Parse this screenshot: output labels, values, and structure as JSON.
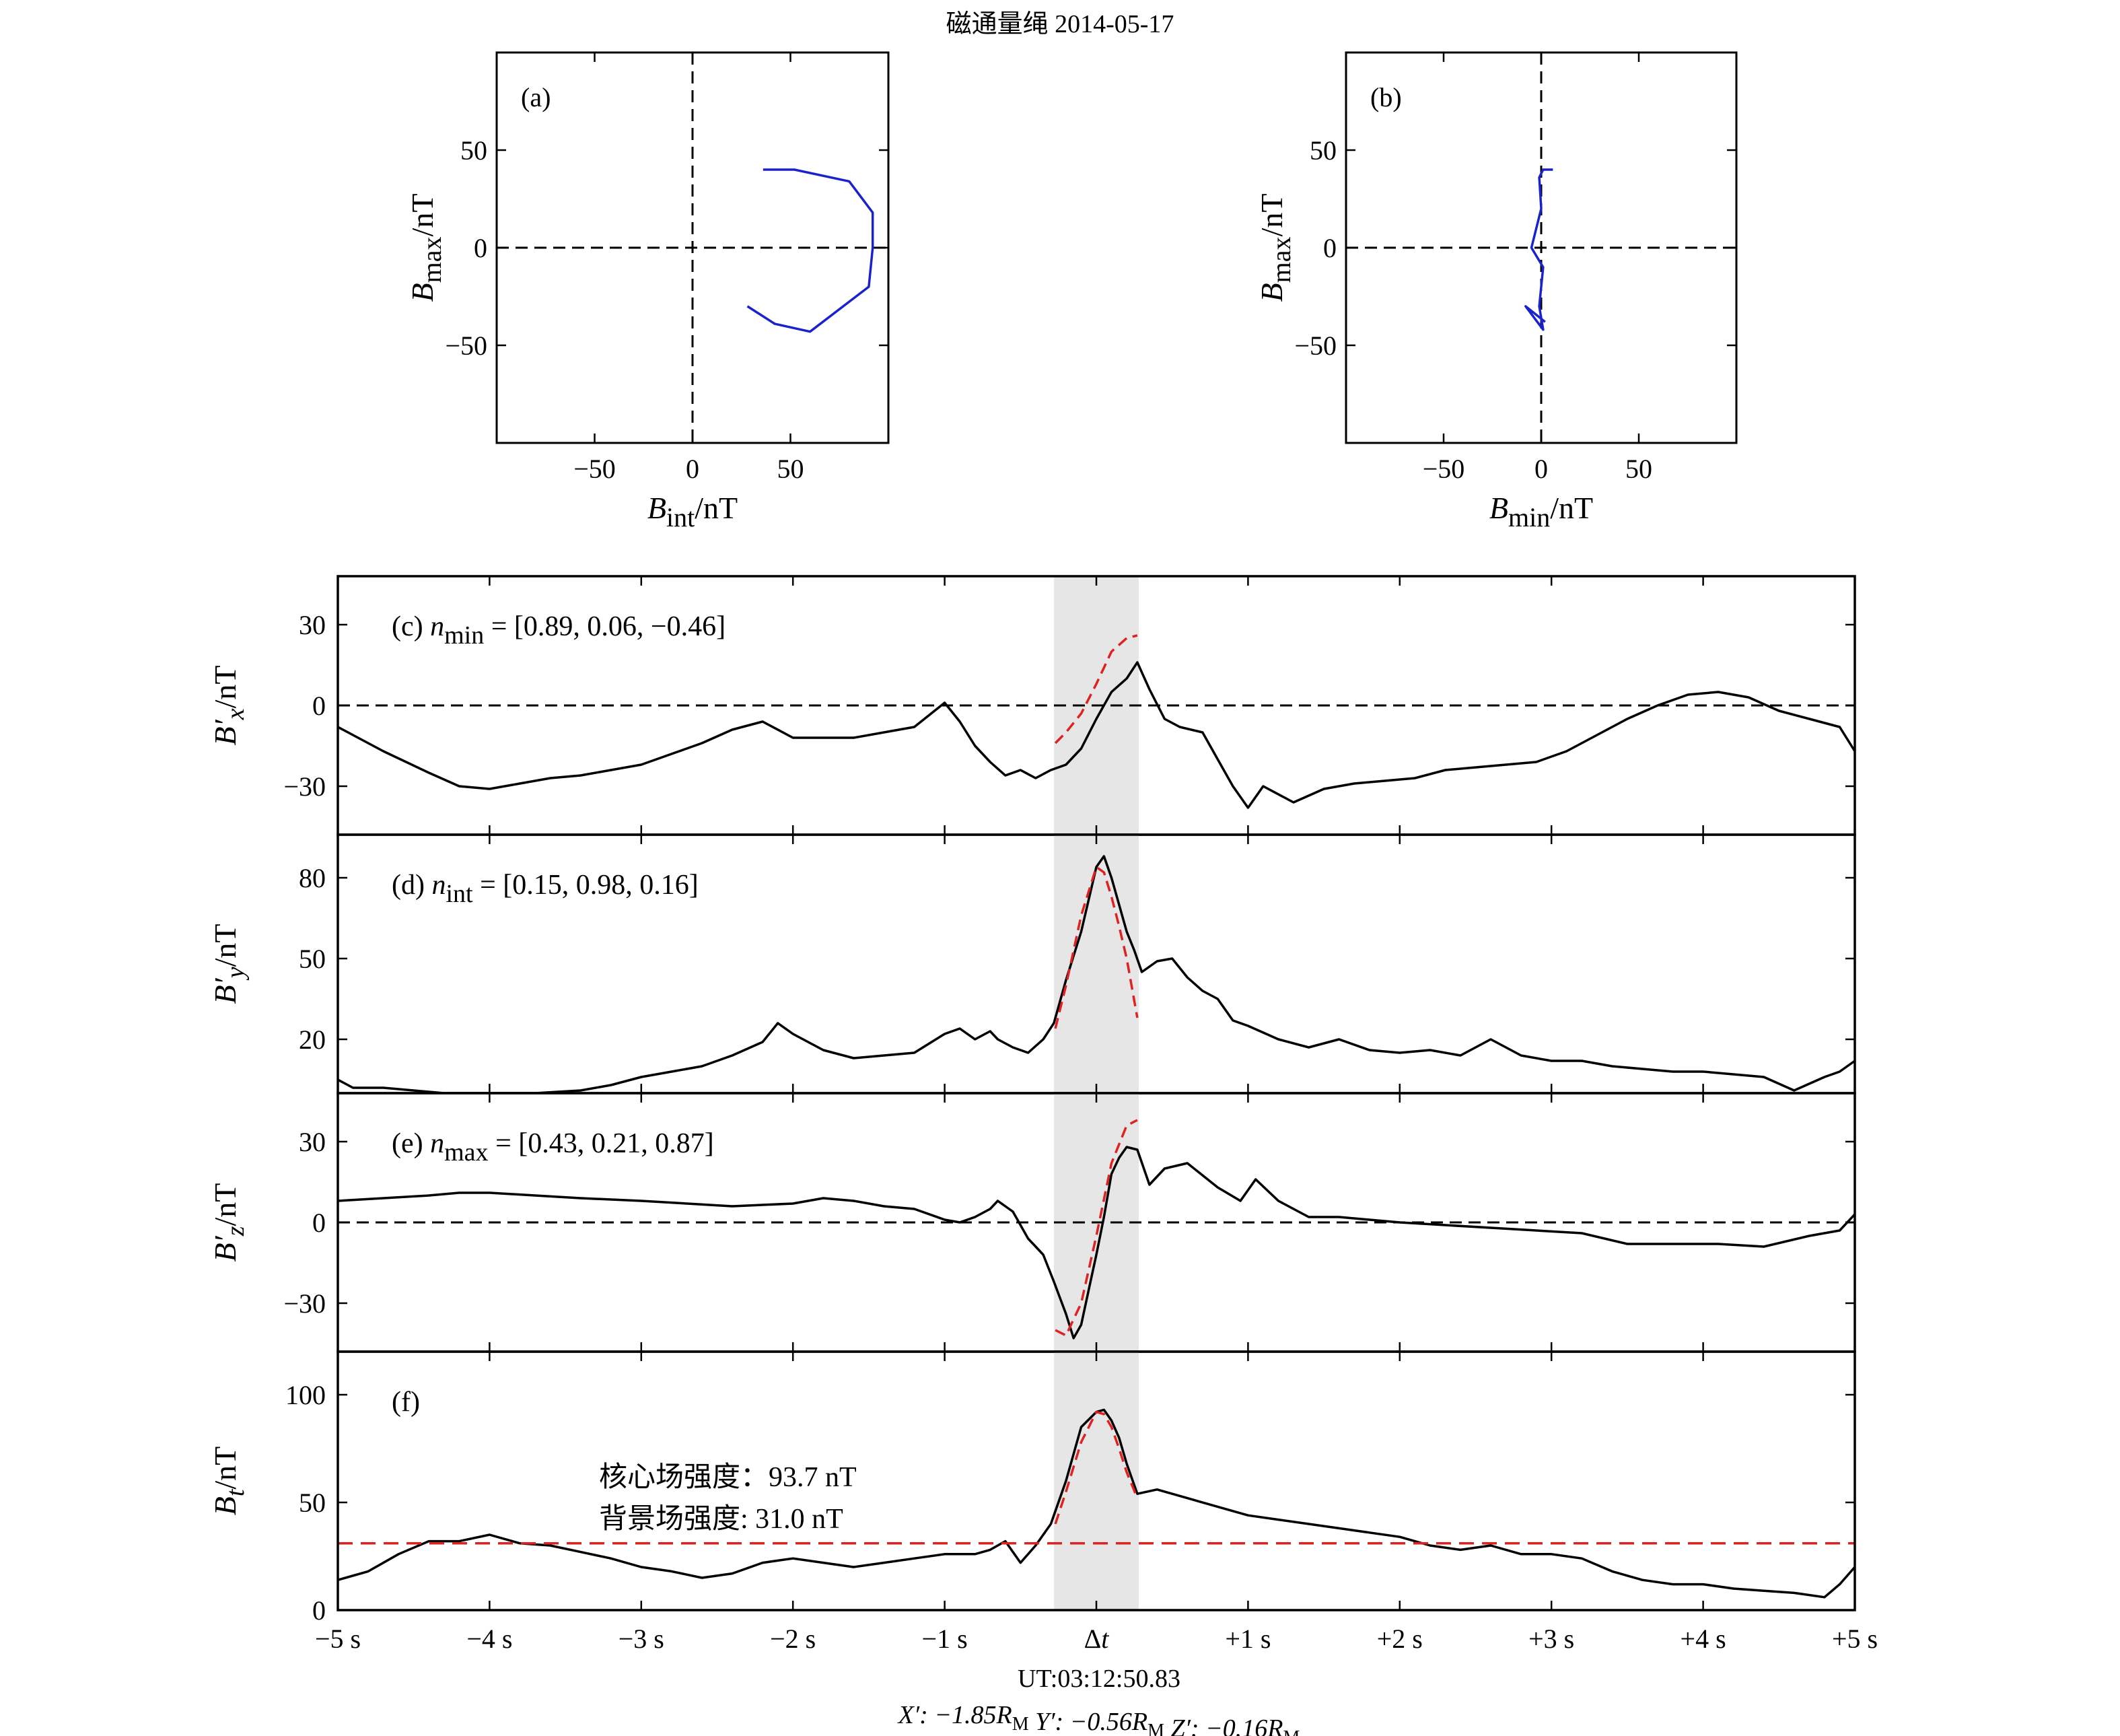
{
  "title": "磁通量绳 2014-05-17",
  "colors": {
    "model": "#dd2222",
    "hodogram": "#1a22cc",
    "data": "#000000",
    "shade": "#e6e6e6"
  },
  "chart_data": [
    {
      "id": "a",
      "type": "line",
      "panel_label": "(a)",
      "xlabel_base": "B",
      "xlabel_sub": "int",
      "xlabel_unit": "/nT",
      "ylabel_base": "B",
      "ylabel_sub": "max",
      "ylabel_unit": "/nT",
      "xlim": [
        -100,
        100
      ],
      "ylim": [
        -100,
        100
      ],
      "xticks": [
        -50,
        0,
        50
      ],
      "yticks": [
        -50,
        0,
        50
      ],
      "xtick_labels": [
        "−50",
        "0",
        "50"
      ],
      "ytick_labels": [
        "−50",
        "0",
        "50"
      ],
      "x": [
        36,
        52,
        80,
        92,
        92,
        90,
        60,
        42,
        28
      ],
      "y": [
        40,
        40,
        34,
        18,
        0,
        -20,
        -43,
        -39,
        -30
      ]
    },
    {
      "id": "b",
      "type": "line",
      "panel_label": "(b)",
      "xlabel_base": "B",
      "xlabel_sub": "min",
      "xlabel_unit": "/nT",
      "ylabel_base": "B",
      "ylabel_sub": "max",
      "ylabel_unit": "/nT",
      "xlim": [
        -100,
        100
      ],
      "ylim": [
        -100,
        100
      ],
      "xticks": [
        -50,
        0,
        50
      ],
      "yticks": [
        -50,
        0,
        50
      ],
      "xtick_labels": [
        "−50",
        "0",
        "50"
      ],
      "ytick_labels": [
        "−50",
        "0",
        "50"
      ],
      "x": [
        6,
        1,
        -1,
        0,
        -5,
        1,
        0,
        -1,
        1,
        -8,
        2
      ],
      "y": [
        40,
        40,
        36,
        20,
        0,
        -10,
        -20,
        -30,
        -42,
        -30,
        -38
      ]
    }
  ],
  "time_series": {
    "type": "line",
    "xlim": [
      -5,
      5
    ],
    "xticks": [
      -5,
      -4,
      -3,
      -2,
      -1,
      0,
      1,
      2,
      3,
      4,
      5
    ],
    "xtick_labels": [
      "−5 s",
      "−4 s",
      "−3 s",
      "−2 s",
      "−1 s",
      "Δt",
      "+1 s",
      "+2 s",
      "+3 s",
      "+4 s",
      "+5 s"
    ],
    "shade_range": [
      -0.28,
      0.28
    ],
    "ut_label": "UT:03:12:50.83",
    "coords": {
      "x_prefix": "X′: −1.85",
      "y_prefix": "Y′: −0.56",
      "z_prefix": "Z′: −0.16",
      "r_base": "R",
      "r_sub": "M"
    },
    "panels": [
      {
        "id": "c",
        "label_prefix": "(c) ",
        "label_n": "n",
        "label_sub": "min",
        "label_suffix": " = [0.89, 0.06, −0.46]",
        "ylabel_base": "B′",
        "ylabel_sub": "x",
        "ylabel_unit": "/nT",
        "ylim": [
          -48,
          48
        ],
        "yticks": [
          -30,
          0,
          30
        ],
        "ytick_labels": [
          "−30",
          "0",
          "30"
        ],
        "zero_line": 0,
        "series": [
          {
            "role": "data",
            "x": [
              -5.0,
              -4.7,
              -4.4,
              -4.2,
              -4.0,
              -3.8,
              -3.6,
              -3.4,
              -3.2,
              -3.0,
              -2.8,
              -2.6,
              -2.4,
              -2.2,
              -2.0,
              -1.8,
              -1.6,
              -1.4,
              -1.2,
              -1.0,
              -0.9,
              -0.8,
              -0.7,
              -0.6,
              -0.5,
              -0.4,
              -0.3,
              -0.2,
              -0.1,
              0.0,
              0.1,
              0.2,
              0.27,
              0.35,
              0.45,
              0.55,
              0.7,
              0.8,
              0.9,
              1.0,
              1.1,
              1.3,
              1.5,
              1.7,
              1.9,
              2.1,
              2.3,
              2.5,
              2.7,
              2.9,
              3.1,
              3.3,
              3.5,
              3.7,
              3.9,
              4.1,
              4.3,
              4.5,
              4.7,
              4.9,
              5.0
            ],
            "y": [
              -8,
              -17,
              -25,
              -30,
              -31,
              -29,
              -27,
              -26,
              -24,
              -22,
              -18,
              -14,
              -9,
              -6,
              -12,
              -12,
              -12,
              -10,
              -8,
              1,
              -6,
              -15,
              -21,
              -26,
              -24,
              -27,
              -24,
              -22,
              -16,
              -5,
              5,
              10,
              16,
              6,
              -5,
              -8,
              -10,
              -20,
              -30,
              -38,
              -30,
              -36,
              -31,
              -29,
              -28,
              -27,
              -24,
              -23,
              -22,
              -21,
              -17,
              -11,
              -5,
              0,
              4,
              5,
              3,
              -2,
              -5,
              -8,
              -17
            ]
          },
          {
            "role": "model",
            "x": [
              -0.27,
              -0.2,
              -0.1,
              0.0,
              0.1,
              0.2,
              0.27
            ],
            "y": [
              -14,
              -10,
              -3,
              8,
              20,
              25,
              26
            ]
          }
        ]
      },
      {
        "id": "d",
        "label_prefix": "(d) ",
        "label_n": "n",
        "label_sub": "int",
        "label_suffix": " = [0.15, 0.98, 0.16]",
        "ylabel_base": "B′",
        "ylabel_sub": "y",
        "ylabel_unit": "/nT",
        "ylim": [
          0,
          96
        ],
        "yticks": [
          20,
          50,
          80
        ],
        "ytick_labels": [
          "20",
          "50",
          "80"
        ],
        "zero_line": null,
        "series": [
          {
            "role": "data",
            "x": [
              -5.0,
              -4.9,
              -4.7,
              -4.5,
              -4.3,
              -4.0,
              -3.7,
              -3.4,
              -3.2,
              -3.0,
              -2.8,
              -2.6,
              -2.4,
              -2.2,
              -2.1,
              -2.0,
              -1.8,
              -1.6,
              -1.4,
              -1.2,
              -1.0,
              -0.9,
              -0.8,
              -0.7,
              -0.65,
              -0.55,
              -0.45,
              -0.35,
              -0.28,
              -0.2,
              -0.1,
              0.0,
              0.05,
              0.1,
              0.15,
              0.2,
              0.25,
              0.3,
              0.4,
              0.5,
              0.6,
              0.7,
              0.8,
              0.9,
              1.0,
              1.2,
              1.4,
              1.6,
              1.8,
              2.0,
              2.2,
              2.4,
              2.6,
              2.8,
              3.0,
              3.2,
              3.4,
              3.6,
              3.8,
              4.0,
              4.2,
              4.4,
              4.6,
              4.8,
              4.9,
              5.0
            ],
            "y": [
              5,
              2,
              2,
              1,
              0,
              0,
              0,
              1,
              3,
              6,
              8,
              10,
              14,
              19,
              26,
              22,
              16,
              13,
              14,
              15,
              22,
              24,
              20,
              23,
              20,
              17,
              15,
              20,
              26,
              42,
              60,
              84,
              88,
              80,
              70,
              60,
              53,
              45,
              49,
              50,
              43,
              38,
              35,
              27,
              25,
              20,
              17,
              20,
              16,
              15,
              16,
              14,
              20,
              14,
              12,
              12,
              10,
              9,
              8,
              8,
              7,
              6,
              1,
              6,
              8,
              12
            ]
          },
          {
            "role": "model",
            "x": [
              -0.27,
              -0.2,
              -0.1,
              0.0,
              0.05,
              0.1,
              0.15,
              0.2,
              0.27
            ],
            "y": [
              24,
              40,
              66,
              84,
              82,
              73,
              62,
              50,
              28
            ]
          }
        ]
      },
      {
        "id": "e",
        "label_prefix": "(e) ",
        "label_n": "n",
        "label_sub": "max",
        "label_suffix": " = [0.43, 0.21, 0.87]",
        "ylabel_base": "B′",
        "ylabel_sub": "z",
        "ylabel_unit": "/nT",
        "ylim": [
          -48,
          48
        ],
        "yticks": [
          -30,
          0,
          30
        ],
        "ytick_labels": [
          "−30",
          "0",
          "30"
        ],
        "zero_line": 0,
        "series": [
          {
            "role": "data",
            "x": [
              -5.0,
              -4.7,
              -4.4,
              -4.2,
              -4.0,
              -3.7,
              -3.4,
              -3.0,
              -2.7,
              -2.4,
              -2.0,
              -1.8,
              -1.6,
              -1.4,
              -1.2,
              -1.0,
              -0.9,
              -0.8,
              -0.7,
              -0.65,
              -0.55,
              -0.45,
              -0.35,
              -0.28,
              -0.2,
              -0.15,
              -0.1,
              -0.05,
              0.0,
              0.05,
              0.1,
              0.15,
              0.2,
              0.27,
              0.35,
              0.45,
              0.6,
              0.8,
              0.95,
              1.05,
              1.2,
              1.4,
              1.6,
              1.8,
              2.0,
              2.3,
              2.6,
              2.9,
              3.2,
              3.5,
              3.8,
              4.1,
              4.4,
              4.7,
              4.9,
              5.0
            ],
            "y": [
              8,
              9,
              10,
              11,
              11,
              10,
              9,
              8,
              7,
              6,
              7,
              9,
              8,
              6,
              5,
              1,
              0,
              2,
              5,
              8,
              4,
              -6,
              -12,
              -22,
              -34,
              -43,
              -38,
              -25,
              -12,
              2,
              18,
              24,
              28,
              27,
              14,
              20,
              22,
              13,
              8,
              16,
              8,
              2,
              2,
              1,
              0,
              -1,
              -2,
              -3,
              -4,
              -8,
              -8,
              -8,
              -9,
              -5,
              -3,
              3
            ]
          },
          {
            "role": "model",
            "x": [
              -0.27,
              -0.2,
              -0.1,
              0.0,
              0.1,
              0.2,
              0.27
            ],
            "y": [
              -40,
              -42,
              -30,
              -5,
              22,
              36,
              38
            ]
          }
        ]
      },
      {
        "id": "f",
        "label_prefix": "(f)",
        "label_n": "",
        "label_sub": "",
        "label_suffix": "",
        "ylabel_base": "B",
        "ylabel_sub": "t",
        "ylabel_unit": "/nT",
        "ylim": [
          0,
          120
        ],
        "yticks": [
          0,
          50,
          100
        ],
        "ytick_labels": [
          "0",
          "50",
          "100"
        ],
        "zero_line": null,
        "annotations": [
          "核心场强度：93.7 nT",
          "背景场强度: 31.0 nT"
        ],
        "series": [
          {
            "role": "data",
            "x": [
              -5.0,
              -4.8,
              -4.6,
              -4.4,
              -4.2,
              -4.0,
              -3.8,
              -3.6,
              -3.4,
              -3.2,
              -3.0,
              -2.8,
              -2.6,
              -2.4,
              -2.2,
              -2.0,
              -1.8,
              -1.6,
              -1.4,
              -1.2,
              -1.0,
              -0.8,
              -0.7,
              -0.6,
              -0.5,
              -0.4,
              -0.3,
              -0.2,
              -0.1,
              0.0,
              0.05,
              0.1,
              0.15,
              0.2,
              0.27,
              0.4,
              0.5,
              0.6,
              0.8,
              1.0,
              1.2,
              1.4,
              1.6,
              1.8,
              2.0,
              2.2,
              2.4,
              2.6,
              2.8,
              3.0,
              3.2,
              3.4,
              3.6,
              3.8,
              4.0,
              4.2,
              4.4,
              4.6,
              4.8,
              4.9,
              5.0
            ],
            "y": [
              14,
              18,
              26,
              32,
              32,
              35,
              31,
              30,
              27,
              24,
              20,
              18,
              15,
              17,
              22,
              24,
              22,
              20,
              22,
              24,
              26,
              26,
              28,
              32,
              22,
              30,
              40,
              60,
              85,
              92,
              93,
              88,
              80,
              68,
              54,
              56,
              54,
              52,
              48,
              44,
              42,
              40,
              38,
              36,
              34,
              30,
              28,
              30,
              26,
              26,
              24,
              18,
              14,
              12,
              12,
              10,
              9,
              8,
              6,
              12,
              20
            ]
          },
          {
            "role": "model",
            "x": [
              -0.27,
              -0.2,
              -0.1,
              0.0,
              0.05,
              0.1,
              0.15,
              0.2,
              0.27
            ],
            "y": [
              40,
              55,
              78,
              92,
              91,
              85,
              75,
              64,
              52
            ]
          },
          {
            "role": "background",
            "x": [
              -5.0,
              5.0
            ],
            "y": [
              31.0,
              31.0
            ]
          }
        ]
      }
    ]
  }
}
